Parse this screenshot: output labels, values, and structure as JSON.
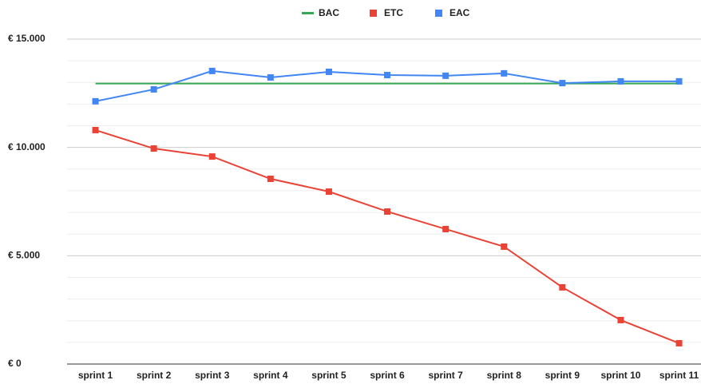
{
  "chart_data": {
    "type": "line",
    "categories": [
      "sprint 1",
      "sprint 2",
      "sprint 3",
      "sprint 4",
      "sprint 5",
      "sprint 6",
      "sprint 7",
      "sprint 8",
      "sprint 9",
      "sprint 10",
      "sprint 11"
    ],
    "series": [
      {
        "name": "BAC",
        "color": "#34a853",
        "markers": false,
        "values": [
          12950,
          12950,
          12950,
          12950,
          12950,
          12950,
          12950,
          12950,
          12950,
          12950,
          12950
        ]
      },
      {
        "name": "ETC",
        "color": "#ea4335",
        "markers": true,
        "values": [
          10800,
          9950,
          9580,
          8550,
          7960,
          7040,
          6230,
          5420,
          3540,
          2030,
          960
        ]
      },
      {
        "name": "EAC",
        "color": "#4285f4",
        "markers": true,
        "values": [
          12130,
          12680,
          13530,
          13230,
          13490,
          13340,
          13310,
          13420,
          12970,
          13050,
          13050
        ]
      }
    ],
    "ylim": [
      0,
      15000
    ],
    "yticks": [
      {
        "value": 0,
        "label": "€ 0"
      },
      {
        "value": 5000,
        "label": "€ 5.000"
      },
      {
        "value": 10000,
        "label": "€ 10.000"
      },
      {
        "value": 15000,
        "label": "€ 15.000"
      }
    ],
    "minor_yticks": [
      1000,
      2000,
      3000,
      4000,
      6000,
      7000,
      8000,
      9000,
      11000,
      12000,
      13000,
      14000
    ],
    "grid": true,
    "legend": "top"
  }
}
